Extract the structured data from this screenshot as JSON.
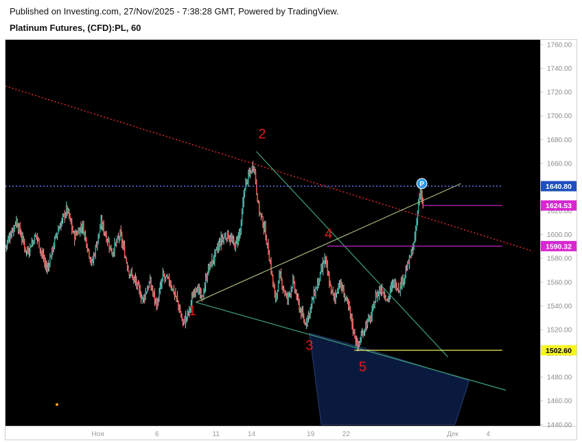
{
  "header": {
    "published": "Published on Investing.com, 27/Nov/2025 - 7:38:28 GMT, Powered by TradingView.",
    "title": "Platinum Futures, (CFD):PL, 60"
  },
  "chart_data": {
    "type": "candlestick",
    "title": "Platinum Futures, (CFD):PL, 60",
    "y_ticks": [
      "1760.00",
      "1740.00",
      "1720.00",
      "1700.00",
      "1680.00",
      "1660.00",
      "1640.00",
      "1620.00",
      "1600.00",
      "1580.00",
      "1560.00",
      "1540.00",
      "1520.00",
      "1500.00",
      "1480.00",
      "1460.00",
      "1440.00"
    ],
    "y_tick_values": [
      1760,
      1740,
      1720,
      1700,
      1680,
      1660,
      1640,
      1620,
      1600,
      1580,
      1560,
      1540,
      1520,
      1500,
      1480,
      1460,
      1440
    ],
    "ylim": [
      1439,
      1764
    ],
    "x_ticks": [
      {
        "label": "Ноя",
        "d": 0
      },
      {
        "label": "6",
        "d": 5
      },
      {
        "label": "11",
        "d": 10
      },
      {
        "label": "14",
        "d": 13
      },
      {
        "label": "19",
        "d": 18
      },
      {
        "label": "22",
        "d": 21
      },
      {
        "label": "Дек",
        "d": 30
      },
      {
        "label": "4",
        "d": 33
      }
    ],
    "xlim": [
      -7.8,
      37.4
    ],
    "price_path": [
      [
        -7.8,
        1590
      ],
      [
        -6.9,
        1612
      ],
      [
        -6.0,
        1585
      ],
      [
        -5.2,
        1600
      ],
      [
        -4.3,
        1570
      ],
      [
        -3.5,
        1600
      ],
      [
        -2.6,
        1622
      ],
      [
        -2.0,
        1598
      ],
      [
        -1.3,
        1608
      ],
      [
        -0.5,
        1575
      ],
      [
        0.3,
        1610
      ],
      [
        1.2,
        1585
      ],
      [
        1.9,
        1600
      ],
      [
        2.6,
        1570
      ],
      [
        3.2,
        1560
      ],
      [
        3.8,
        1545
      ],
      [
        4.4,
        1560
      ],
      [
        5.0,
        1540
      ],
      [
        5.5,
        1565
      ],
      [
        6.1,
        1560
      ],
      [
        6.7,
        1545
      ],
      [
        7.2,
        1525
      ],
      [
        7.7,
        1535
      ],
      [
        8.3,
        1558
      ],
      [
        8.8,
        1545
      ],
      [
        9.3,
        1570
      ],
      [
        9.8,
        1580
      ],
      [
        10.4,
        1595
      ],
      [
        11.0,
        1600
      ],
      [
        11.6,
        1590
      ],
      [
        12.1,
        1605
      ],
      [
        12.4,
        1640
      ],
      [
        12.8,
        1650
      ],
      [
        13.2,
        1660
      ],
      [
        13.4,
        1640
      ],
      [
        13.6,
        1622
      ],
      [
        14.1,
        1605
      ],
      [
        14.6,
        1575
      ],
      [
        15.0,
        1545
      ],
      [
        15.4,
        1565
      ],
      [
        16.0,
        1545
      ],
      [
        16.5,
        1560
      ],
      [
        17.0,
        1540
      ],
      [
        17.5,
        1525
      ],
      [
        17.9,
        1535
      ],
      [
        18.3,
        1550
      ],
      [
        18.8,
        1565
      ],
      [
        19.2,
        1580
      ],
      [
        19.6,
        1558
      ],
      [
        20.0,
        1545
      ],
      [
        20.4,
        1560
      ],
      [
        20.9,
        1548
      ],
      [
        21.3,
        1535
      ],
      [
        21.6,
        1520
      ],
      [
        22.0,
        1505
      ],
      [
        22.3,
        1515
      ],
      [
        22.7,
        1525
      ],
      [
        23.1,
        1530
      ],
      [
        23.5,
        1548
      ],
      [
        24.0,
        1555
      ],
      [
        24.5,
        1545
      ],
      [
        25.0,
        1560
      ],
      [
        25.5,
        1555
      ],
      [
        26.0,
        1568
      ],
      [
        26.4,
        1580
      ],
      [
        26.8,
        1595
      ],
      [
        27.1,
        1625
      ],
      [
        27.3,
        1640
      ],
      [
        27.5,
        1624
      ]
    ],
    "trend_lines": [
      {
        "name": "resistance",
        "style": "dotted",
        "color": "#d62828",
        "points": [
          [
            -7.8,
            1725
          ],
          [
            36.8,
            1586
          ]
        ]
      },
      {
        "name": "wave-2-4",
        "style": "solid",
        "color": "#3fa37a",
        "points": [
          [
            13.4,
            1670
          ],
          [
            29.6,
            1497
          ]
        ]
      },
      {
        "name": "wave-1-3",
        "style": "solid",
        "color": "#3fa37a",
        "points": [
          [
            8.3,
            1543
          ],
          [
            34.5,
            1469
          ]
        ]
      },
      {
        "name": "wave-1-4-ext",
        "style": "solid",
        "color": "#a6bd7c",
        "points": [
          [
            8.3,
            1543
          ],
          [
            30.7,
            1643
          ]
        ]
      },
      {
        "name": "wave-4-level",
        "style": "solid",
        "color": "#d926cf",
        "points": [
          [
            19.4,
            1590.32
          ],
          [
            34.2,
            1590.32
          ]
        ]
      },
      {
        "name": "price-1624-level",
        "style": "solid",
        "color": "#d926cf",
        "points": [
          [
            27.5,
            1624.53
          ],
          [
            34.2,
            1624.53
          ]
        ]
      },
      {
        "name": "level-1502",
        "style": "solid",
        "color": "#f0f060",
        "points": [
          [
            21.7,
            1502.6
          ],
          [
            34.2,
            1502.6
          ]
        ]
      },
      {
        "name": "current-price",
        "style": "dotted",
        "color": "#5b6fe0",
        "points": [
          [
            -7.8,
            1640.8
          ],
          [
            34.2,
            1640.8
          ]
        ]
      }
    ],
    "zone": {
      "color": "#0a1a3f",
      "points": [
        [
          17.9,
          1517
        ],
        [
          22.0,
          1506
        ],
        [
          31.4,
          1477
        ],
        [
          30.2,
          1440
        ],
        [
          18.9,
          1440
        ]
      ]
    },
    "waves": [
      {
        "label": "1",
        "x": 8.0,
        "y": 1532
      },
      {
        "label": "2",
        "x": 13.9,
        "y": 1681
      },
      {
        "label": "3",
        "x": 17.9,
        "y": 1503
      },
      {
        "label": "4",
        "x": 19.5,
        "y": 1597
      },
      {
        "label": "5",
        "x": 22.4,
        "y": 1485
      }
    ],
    "price_tags": [
      {
        "label": "1640.80",
        "value": 1640.8,
        "bg": "#1f4fbf",
        "fg": "#ffffff"
      },
      {
        "label": "1624.53",
        "value": 1624.53,
        "bg": "#d926cf",
        "fg": "#ffffff"
      },
      {
        "label": "1590.32",
        "value": 1590.32,
        "bg": "#d926cf",
        "fg": "#ffffff"
      },
      {
        "label": "1502.60",
        "value": 1502.6,
        "bg": "#f5f522",
        "fg": "#000000"
      }
    ],
    "marker": {
      "label": "P",
      "x": 27.4,
      "y": 1643,
      "color": "#2a9be6"
    },
    "grid": false,
    "background": "#000000"
  }
}
